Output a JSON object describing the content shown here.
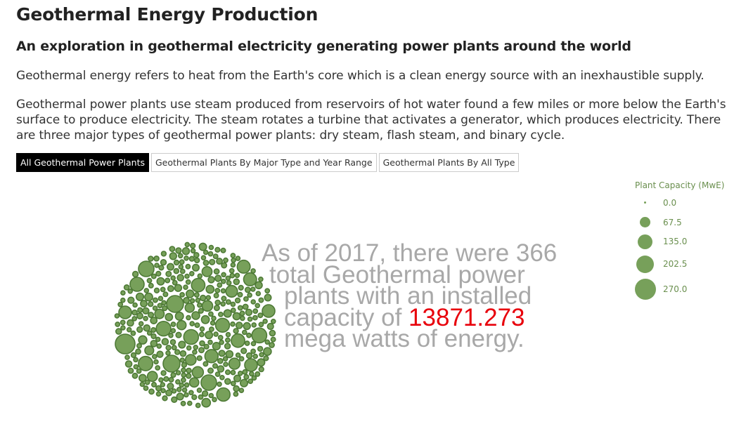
{
  "header": {
    "title": "Geothermal Energy Production",
    "subtitle": "An exploration in geothermal electricity generating power plants around the world"
  },
  "intro": {
    "paragraph_1": "Geothermal energy refers to heat from the Earth's core which is a clean energy source with an inexhaustible supply.",
    "paragraph_2": "Geothermal power plants use steam produced from reservoirs of hot water found a few miles or more below the Earth's surface to produce electricity. The steam rotates a turbine that activates a generator, which produces electricity. There are three major types of geothermal power plants: dry steam, flash steam, and binary cycle."
  },
  "tabs": [
    {
      "label": "All Geothermal Power Plants",
      "active": true
    },
    {
      "label": "Geothermal Plants By Major Type and Year Range",
      "active": false
    },
    {
      "label": "Geothermal Plants By All Type",
      "active": false
    }
  ],
  "summary": {
    "line_1": "As of 2017, there were 366",
    "line_2": "total Geothermal power",
    "line_3": "plants with an installed",
    "line_4_prefix": "capacity of ",
    "capacity_value": "13871.273",
    "line_5": "mega watts of energy."
  },
  "legend": {
    "title": "Plant Capacity (MwE)",
    "items": [
      {
        "label": "0.0",
        "value": 0.0
      },
      {
        "label": "67.5",
        "value": 67.5
      },
      {
        "label": "135.0",
        "value": 135.0
      },
      {
        "label": "202.5",
        "value": 202.5
      },
      {
        "label": "270.0",
        "value": 270.0
      }
    ]
  },
  "colors": {
    "bubble_fill": "#77a05a",
    "bubble_stroke": "#4e7a36",
    "legend_text": "#6a8f4e",
    "summary_text": "#a8a8a8",
    "highlight": "#e8000b",
    "active_tab_bg": "#000000"
  }
}
